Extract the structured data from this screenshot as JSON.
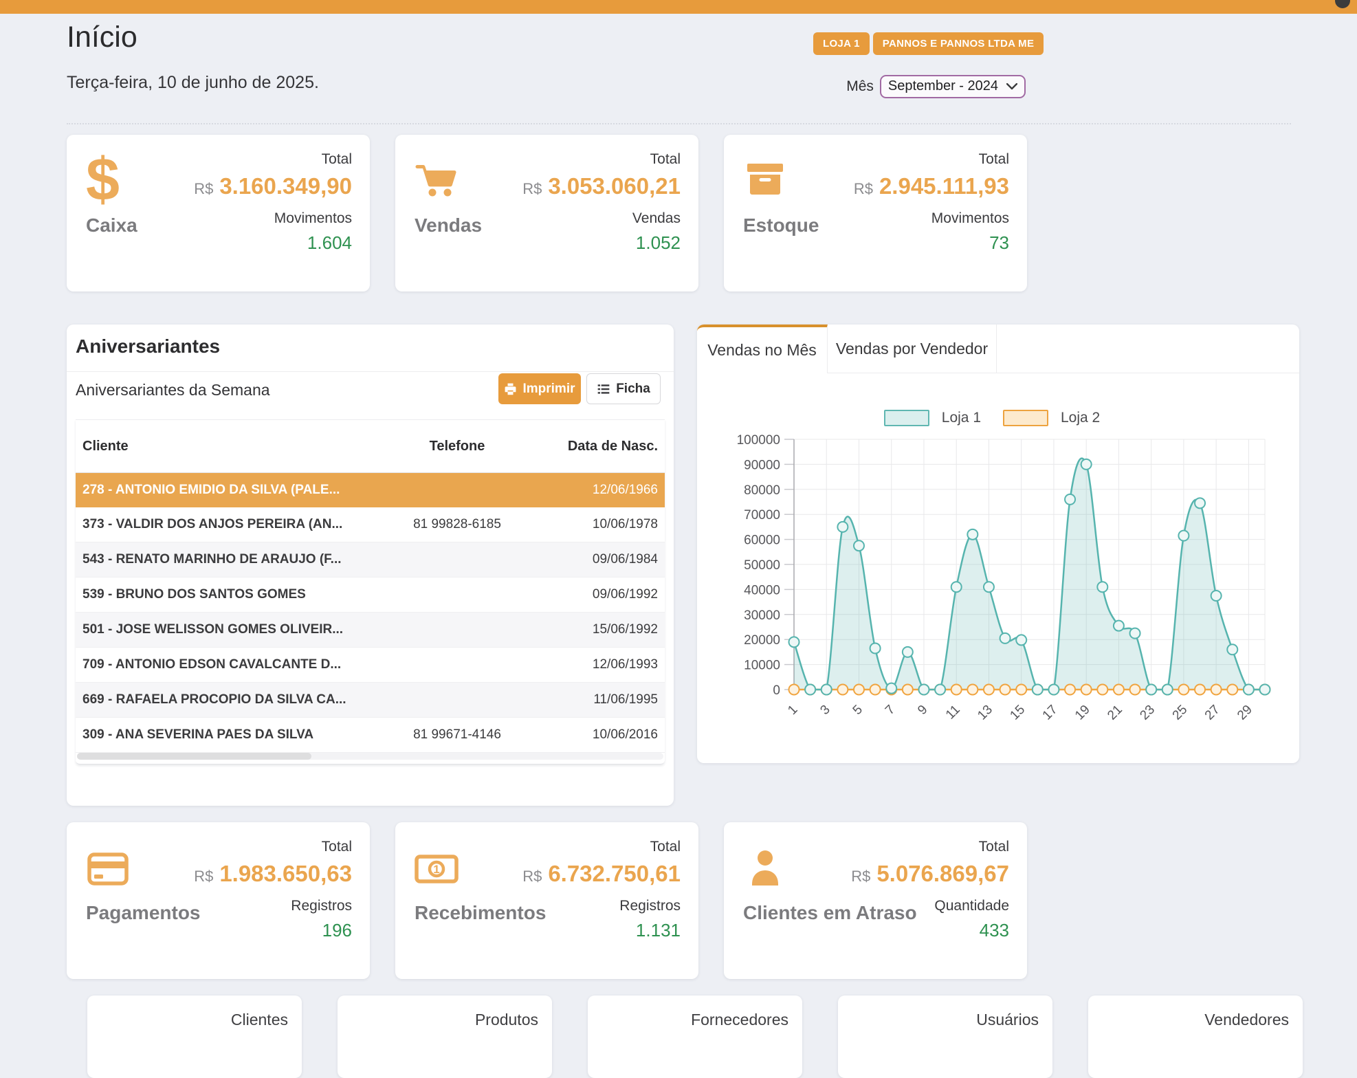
{
  "header": {
    "title": "Início",
    "store_button": "LOJA 1",
    "company_button": "PANNOS E PANNOS LTDA ME",
    "date": "Terça-feira, 10 de junho de 2025.",
    "month_label": "Mês",
    "month_value": "September - 2024"
  },
  "summary_cards": [
    {
      "label": "Caixa",
      "icon": "dollar-icon",
      "total_label": "Total",
      "currency": "R$",
      "total": "3.160.349,90",
      "count_label": "Movimentos",
      "count": "1.604"
    },
    {
      "label": "Vendas",
      "icon": "cart-icon",
      "total_label": "Total",
      "currency": "R$",
      "total": "3.053.060,21",
      "count_label": "Vendas",
      "count": "1.052"
    },
    {
      "label": "Estoque",
      "icon": "box-icon",
      "total_label": "Total",
      "currency": "R$",
      "total": "2.945.111,93",
      "count_label": "Movimentos",
      "count": "73"
    }
  ],
  "birthdays": {
    "title": "Aniversariantes",
    "subtitle": "Aniversariantes da Semana",
    "print_button": "Imprimir",
    "ficha_button": "Ficha",
    "columns": [
      "Cliente",
      "Telefone",
      "Data de Nasc."
    ],
    "rows": [
      {
        "cliente": "278 - ANTONIO EMIDIO DA SILVA (PALE...",
        "telefone": "",
        "nascimento": "12/06/1966"
      },
      {
        "cliente": "373 - VALDIR DOS ANJOS PEREIRA (AN...",
        "telefone": "81 99828-6185",
        "nascimento": "10/06/1978"
      },
      {
        "cliente": "543 - RENATO MARINHO DE ARAUJO (F...",
        "telefone": "",
        "nascimento": "09/06/1984"
      },
      {
        "cliente": "539 - BRUNO DOS SANTOS GOMES",
        "telefone": "",
        "nascimento": "09/06/1992"
      },
      {
        "cliente": "501 - JOSE WELISSON GOMES OLIVEIR...",
        "telefone": "",
        "nascimento": "15/06/1992"
      },
      {
        "cliente": "709 - ANTONIO EDSON CAVALCANTE D...",
        "telefone": "",
        "nascimento": "12/06/1993"
      },
      {
        "cliente": "669 - RAFAELA PROCOPIO DA SILVA CA...",
        "telefone": "",
        "nascimento": "11/06/1995"
      },
      {
        "cliente": "309 - ANA SEVERINA PAES DA SILVA",
        "telefone": "81 99671-4146",
        "nascimento": "10/06/2016"
      }
    ]
  },
  "sales_panel": {
    "tabs": [
      {
        "label": "Vendas no Mês",
        "active": true
      },
      {
        "label": "Vendas por Vendedor",
        "active": false
      }
    ]
  },
  "chart_data": {
    "type": "area",
    "title": "Vendas no Mês",
    "x": [
      1,
      2,
      3,
      4,
      5,
      6,
      7,
      8,
      9,
      10,
      11,
      12,
      13,
      14,
      15,
      16,
      17,
      18,
      19,
      20,
      21,
      22,
      23,
      24,
      25,
      26,
      27,
      28,
      29,
      30
    ],
    "xticks": [
      1,
      3,
      5,
      7,
      9,
      11,
      13,
      15,
      17,
      19,
      21,
      23,
      25,
      27,
      29
    ],
    "ylim": [
      0,
      100000
    ],
    "ytick_step": 10000,
    "grid": true,
    "legend_position": "top",
    "series": [
      {
        "name": "Loja 1",
        "line_color": "#56b4ae",
        "fill_color": "rgba(101,184,178,0.22)",
        "point_fill": "#edf7f6",
        "values": [
          19000,
          0,
          0,
          65000,
          57500,
          16500,
          500,
          15000,
          0,
          0,
          41000,
          62000,
          41000,
          20500,
          19800,
          0,
          0,
          76000,
          90000,
          41000,
          25500,
          22500,
          0,
          0,
          61500,
          74500,
          37500,
          16000,
          0,
          0
        ]
      },
      {
        "name": "Loja 2",
        "line_color": "#f0a43f",
        "fill_color": "rgba(240,164,63,0.15)",
        "point_fill": "#fdf2e0",
        "values": [
          0,
          0,
          0,
          0,
          0,
          0,
          0,
          0,
          0,
          0,
          0,
          0,
          0,
          0,
          0,
          0,
          0,
          0,
          0,
          0,
          0,
          0,
          0,
          0,
          0,
          0,
          0,
          0,
          0,
          0
        ]
      }
    ]
  },
  "bottom_cards": [
    {
      "label": "Pagamentos",
      "icon": "credit-card-icon",
      "total_label": "Total",
      "currency": "R$",
      "total": "1.983.650,63",
      "count_label": "Registros",
      "count": "196"
    },
    {
      "label": "Recebimentos",
      "icon": "money-bill-icon",
      "total_label": "Total",
      "currency": "R$",
      "total": "6.732.750,61",
      "count_label": "Registros",
      "count": "1.131"
    },
    {
      "label": "Clientes em Atraso",
      "icon": "person-icon",
      "total_label": "Total",
      "currency": "R$",
      "total": "5.076.869,67",
      "count_label": "Quantidade",
      "count": "433"
    }
  ],
  "footer_cards": [
    {
      "label": "Clientes"
    },
    {
      "label": "Produtos"
    },
    {
      "label": "Fornecedores"
    },
    {
      "label": "Usuários"
    },
    {
      "label": "Vendedores"
    }
  ],
  "colors": {
    "topbar_orange": "#e79b3c",
    "value_orange": "#eaa54e",
    "positive_green": "#2e9150",
    "selected_row_orange": "#e9a64f",
    "loja1_teal": "#56b4ae",
    "loja2_orange": "#f0a43f",
    "month_select_border": "#a16aa3",
    "background": "#edeff4"
  }
}
